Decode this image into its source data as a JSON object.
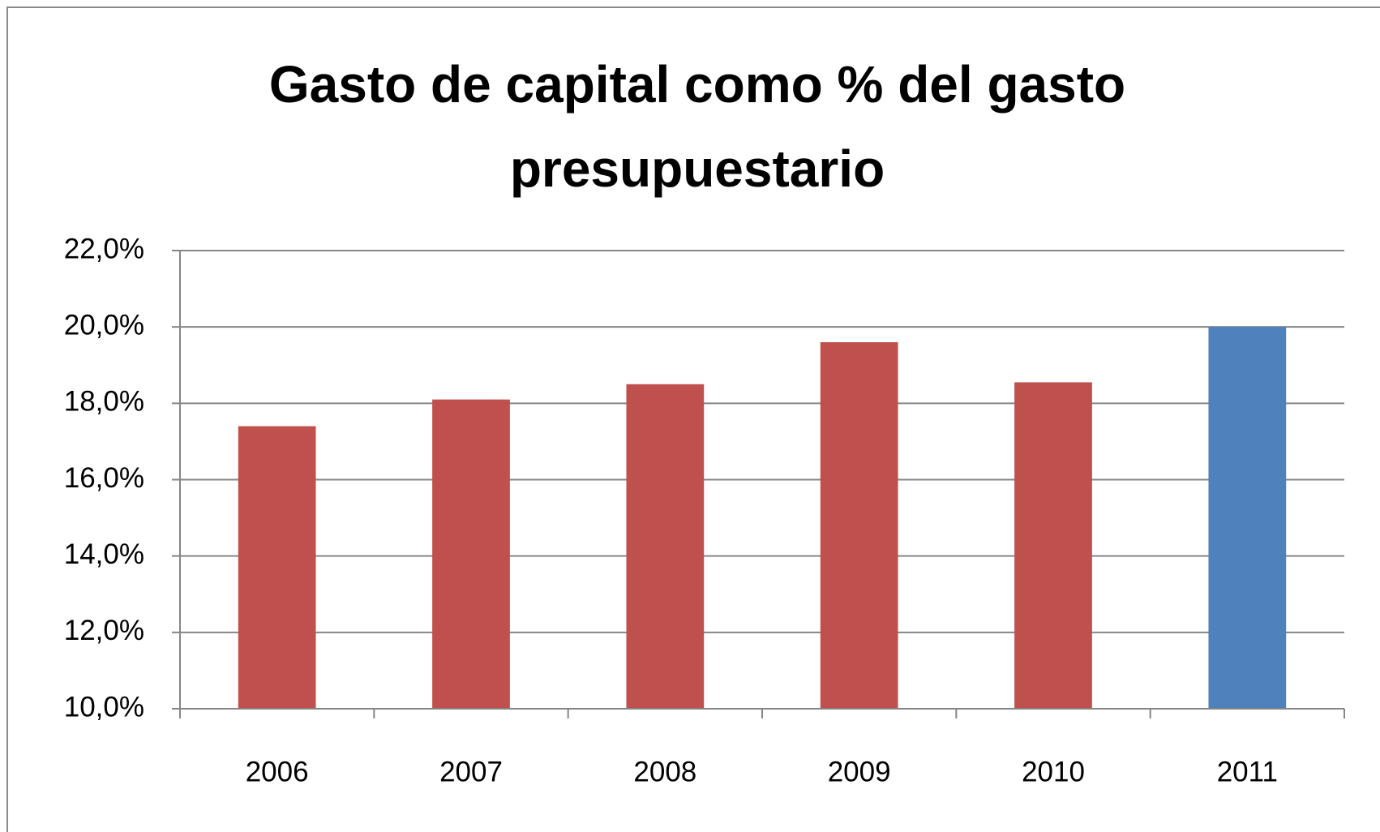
{
  "chart_data": {
    "type": "bar",
    "title": "Gasto de capital como % del gasto presupuestario",
    "categories": [
      "2006",
      "2007",
      "2008",
      "2009",
      "2010",
      "2011"
    ],
    "values": [
      17.4,
      18.1,
      18.5,
      19.6,
      18.55,
      20.0
    ],
    "colors": [
      "#c0504d",
      "#c0504d",
      "#c0504d",
      "#c0504d",
      "#c0504d",
      "#4f81bd"
    ],
    "ylim": [
      10,
      22
    ],
    "yticks": [
      {
        "value": 10,
        "label": "10,0%"
      },
      {
        "value": 12,
        "label": "12,0%"
      },
      {
        "value": 14,
        "label": "14,0%"
      },
      {
        "value": 16,
        "label": "16,0%"
      },
      {
        "value": 18,
        "label": "18,0%"
      },
      {
        "value": 20,
        "label": "20,0%"
      },
      {
        "value": 22,
        "label": "22,0%"
      }
    ],
    "grid": true
  }
}
